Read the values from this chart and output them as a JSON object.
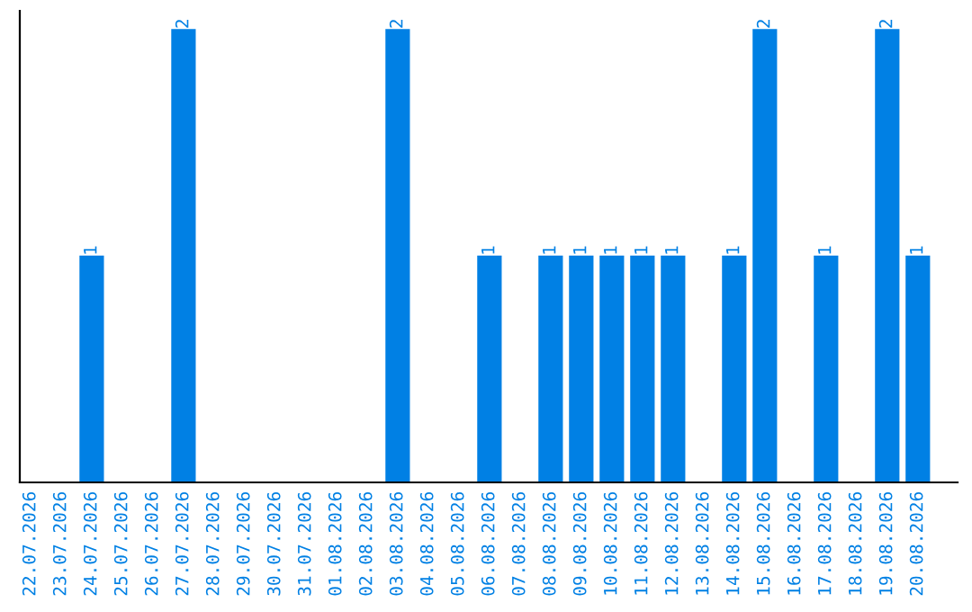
{
  "chart_data": {
    "type": "bar",
    "categories": [
      "22.07.2026",
      "23.07.2026",
      "24.07.2026",
      "25.07.2026",
      "26.07.2026",
      "27.07.2026",
      "28.07.2026",
      "29.07.2026",
      "30.07.2026",
      "31.07.2026",
      "01.08.2026",
      "02.08.2026",
      "03.08.2026",
      "04.08.2026",
      "05.08.2026",
      "06.08.2026",
      "07.08.2026",
      "08.08.2026",
      "09.08.2026",
      "10.08.2026",
      "11.08.2026",
      "12.08.2026",
      "13.08.2026",
      "14.08.2026",
      "15.08.2026",
      "16.08.2026",
      "17.08.2026",
      "18.08.2026",
      "19.08.2026",
      "20.08.2026"
    ],
    "values": [
      0,
      0,
      1,
      0,
      0,
      2,
      0,
      0,
      0,
      0,
      0,
      0,
      2,
      0,
      0,
      1,
      0,
      1,
      1,
      1,
      1,
      1,
      0,
      1,
      2,
      0,
      1,
      0,
      2,
      1
    ],
    "value_labels": [
      null,
      null,
      "1",
      null,
      null,
      "2",
      null,
      null,
      null,
      null,
      null,
      null,
      "2",
      null,
      null,
      "1",
      null,
      "1",
      "1",
      "1",
      "1",
      "1",
      null,
      "1",
      "2",
      null,
      "1",
      null,
      "2",
      "1"
    ],
    "color": "#0080e4",
    "tick_labels": "x",
    "grid": false,
    "legend": false
  }
}
